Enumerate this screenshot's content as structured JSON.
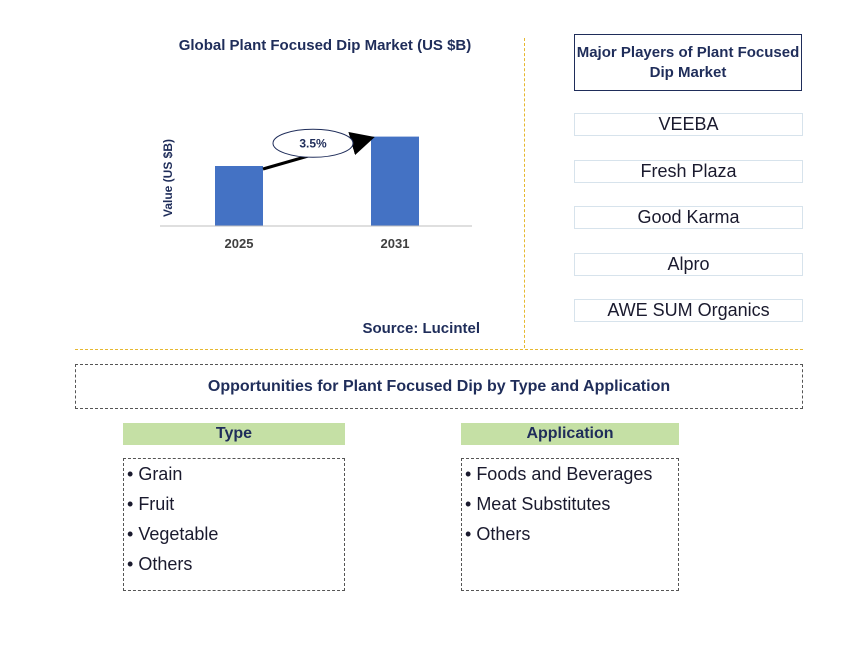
{
  "chart_data": {
    "type": "bar",
    "title": "Global Plant Focused Dip Market (US $B)",
    "ylabel": "Value (US $B)",
    "categories": [
      "2025",
      "2031"
    ],
    "values": [
      1.0,
      1.49
    ],
    "ylim": [
      0,
      1.6
    ],
    "color": "#4472c4",
    "annotation": "3.5%",
    "grid": false
  },
  "source": "Source: Lucintel",
  "players": {
    "title": "Major Players of Plant Focused Dip Market",
    "items": [
      "VEEBA",
      "Fresh Plaza",
      "Good Karma",
      "Alpro",
      "AWE SUM Organics"
    ]
  },
  "opportunities": {
    "title": "Opportunities for Plant Focused Dip by Type and Application",
    "type": {
      "header": "Type",
      "items": [
        "Grain",
        "Fruit",
        "Vegetable",
        "Others"
      ]
    },
    "application": {
      "header": "Application",
      "items": [
        "Foods and Beverages",
        "Meat Substitutes",
        "Others"
      ]
    }
  }
}
